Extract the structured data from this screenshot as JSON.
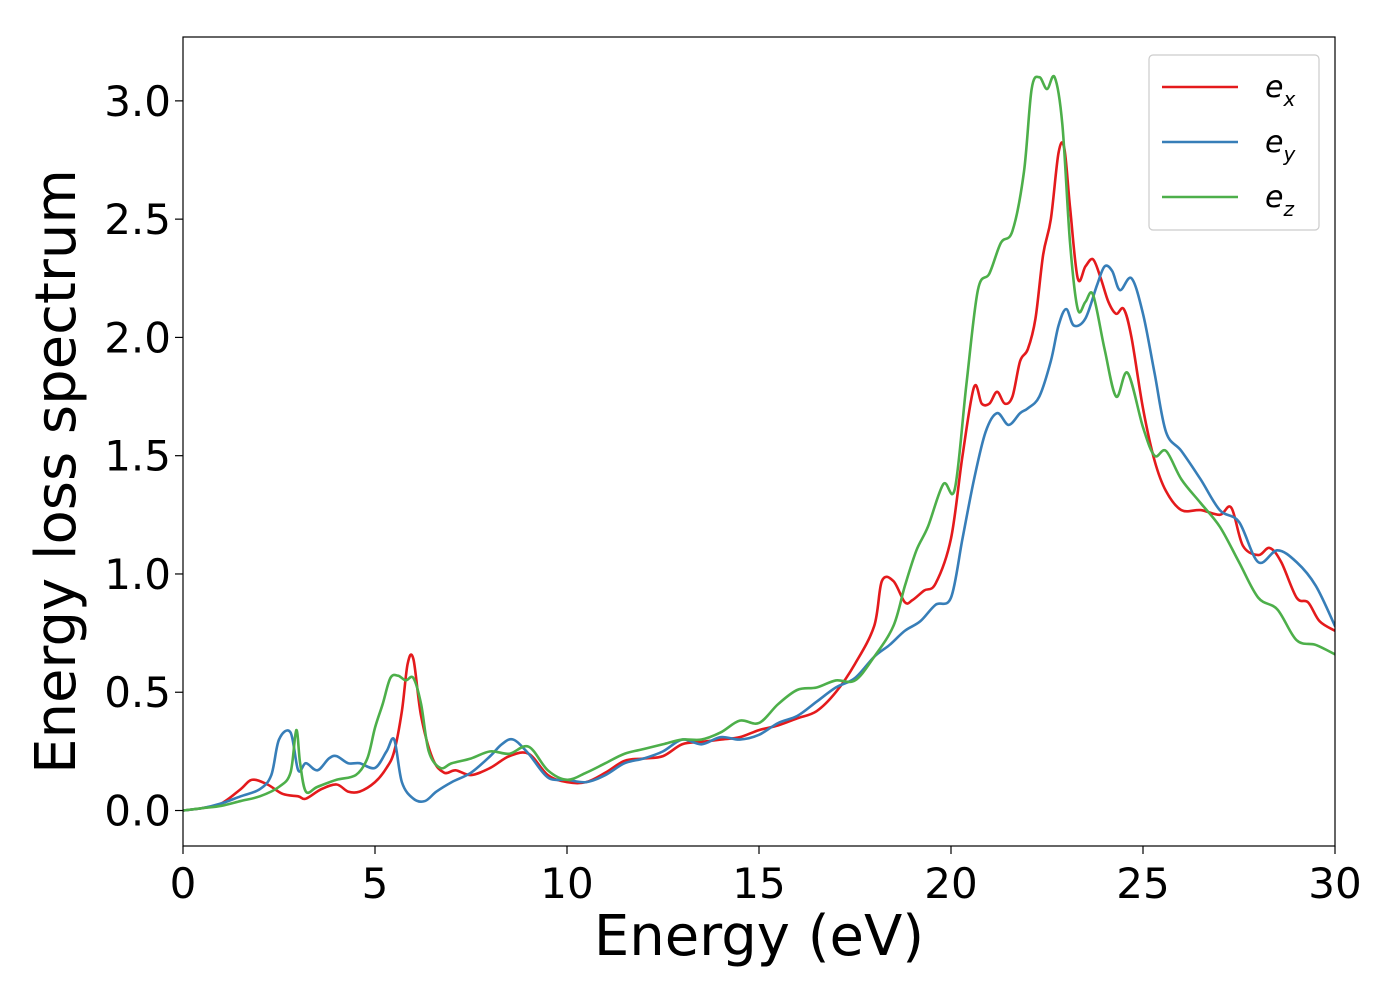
{
  "chart_data": {
    "type": "line",
    "xlabel": "Energy (eV)",
    "ylabel": "Energy loss spectrum",
    "xlim": [
      0,
      30
    ],
    "ylim": [
      -0.15,
      3.27
    ],
    "xticks": [
      0,
      5,
      10,
      15,
      20,
      25,
      30
    ],
    "xtick_labels": [
      "0",
      "5",
      "10",
      "15",
      "20",
      "25",
      "30"
    ],
    "yticks": [
      0.0,
      0.5,
      1.0,
      1.5,
      2.0,
      2.5,
      3.0
    ],
    "ytick_labels": [
      "0.0",
      "0.5",
      "1.0",
      "1.5",
      "2.0",
      "2.5",
      "3.0"
    ],
    "grid": false,
    "legend_position": "top-right",
    "series": [
      {
        "name": "e_x",
        "legend_main": "e",
        "legend_sub": "x",
        "color": "#e41a1c",
        "x": [
          0,
          0.5,
          1.0,
          1.5,
          1.8,
          2.2,
          2.6,
          3.0,
          3.2,
          3.6,
          4.0,
          4.3,
          4.6,
          5.0,
          5.3,
          5.5,
          5.7,
          5.85,
          6.0,
          6.2,
          6.5,
          6.8,
          7.1,
          7.5,
          8.0,
          8.5,
          9.0,
          9.5,
          10.0,
          10.5,
          11.0,
          11.5,
          12.0,
          12.5,
          13.0,
          13.5,
          14.0,
          14.5,
          15.0,
          15.5,
          16.0,
          16.5,
          17.0,
          17.5,
          18.0,
          18.2,
          18.5,
          18.8,
          19.0,
          19.3,
          19.6,
          20.0,
          20.3,
          20.6,
          20.8,
          21.0,
          21.2,
          21.4,
          21.6,
          21.8,
          22.0,
          22.2,
          22.4,
          22.6,
          22.8,
          22.95,
          23.1,
          23.3,
          23.5,
          23.7,
          23.9,
          24.1,
          24.3,
          24.5,
          24.7,
          25.0,
          25.3,
          25.6,
          26.0,
          26.5,
          27.0,
          27.3,
          27.6,
          28.0,
          28.3,
          28.6,
          29.0,
          29.3,
          29.6,
          30.0
        ],
        "y": [
          0.0,
          0.01,
          0.03,
          0.09,
          0.13,
          0.11,
          0.07,
          0.06,
          0.05,
          0.09,
          0.11,
          0.08,
          0.08,
          0.12,
          0.18,
          0.25,
          0.42,
          0.62,
          0.64,
          0.4,
          0.22,
          0.16,
          0.17,
          0.15,
          0.18,
          0.23,
          0.24,
          0.15,
          0.12,
          0.12,
          0.16,
          0.21,
          0.22,
          0.23,
          0.28,
          0.29,
          0.3,
          0.31,
          0.34,
          0.36,
          0.39,
          0.42,
          0.5,
          0.62,
          0.78,
          0.97,
          0.97,
          0.88,
          0.89,
          0.93,
          0.96,
          1.15,
          1.5,
          1.79,
          1.72,
          1.72,
          1.77,
          1.72,
          1.75,
          1.9,
          1.95,
          2.08,
          2.35,
          2.5,
          2.78,
          2.8,
          2.55,
          2.25,
          2.3,
          2.33,
          2.25,
          2.15,
          2.1,
          2.12,
          2.0,
          1.7,
          1.48,
          1.35,
          1.27,
          1.27,
          1.25,
          1.28,
          1.12,
          1.08,
          1.11,
          1.05,
          0.9,
          0.88,
          0.8,
          0.76
        ]
      },
      {
        "name": "e_y",
        "legend_main": "e",
        "legend_sub": "y",
        "color": "#377eb8",
        "x": [
          0,
          0.5,
          1.0,
          1.5,
          2.0,
          2.3,
          2.5,
          2.8,
          3.0,
          3.2,
          3.5,
          3.8,
          4.0,
          4.3,
          4.6,
          5.0,
          5.3,
          5.5,
          5.7,
          6.0,
          6.3,
          6.6,
          7.0,
          7.5,
          8.0,
          8.3,
          8.6,
          9.0,
          9.5,
          10.0,
          10.5,
          11.0,
          11.5,
          12.0,
          12.5,
          13.0,
          13.5,
          14.0,
          14.5,
          15.0,
          15.5,
          16.0,
          16.5,
          17.0,
          17.5,
          18.0,
          18.4,
          18.8,
          19.2,
          19.6,
          20.0,
          20.3,
          20.6,
          20.9,
          21.2,
          21.5,
          21.8,
          22.0,
          22.3,
          22.6,
          22.8,
          23.0,
          23.2,
          23.5,
          23.8,
          24.0,
          24.2,
          24.4,
          24.7,
          25.0,
          25.3,
          25.6,
          26.0,
          26.5,
          27.0,
          27.5,
          28.0,
          28.5,
          29.0,
          29.5,
          30.0
        ],
        "y": [
          0.0,
          0.01,
          0.03,
          0.06,
          0.09,
          0.15,
          0.3,
          0.33,
          0.17,
          0.2,
          0.17,
          0.22,
          0.23,
          0.2,
          0.2,
          0.18,
          0.25,
          0.3,
          0.12,
          0.05,
          0.04,
          0.08,
          0.12,
          0.16,
          0.23,
          0.28,
          0.3,
          0.24,
          0.14,
          0.13,
          0.12,
          0.15,
          0.2,
          0.22,
          0.25,
          0.3,
          0.28,
          0.31,
          0.3,
          0.32,
          0.37,
          0.4,
          0.46,
          0.52,
          0.56,
          0.65,
          0.7,
          0.76,
          0.8,
          0.87,
          0.9,
          1.15,
          1.4,
          1.6,
          1.68,
          1.63,
          1.68,
          1.7,
          1.75,
          1.9,
          2.05,
          2.12,
          2.05,
          2.08,
          2.22,
          2.3,
          2.28,
          2.2,
          2.25,
          2.1,
          1.85,
          1.6,
          1.52,
          1.4,
          1.27,
          1.22,
          1.05,
          1.1,
          1.05,
          0.95,
          0.78
        ]
      },
      {
        "name": "e_z",
        "legend_main": "e",
        "legend_sub": "z",
        "color": "#4daf4a",
        "x": [
          0,
          0.5,
          1.0,
          1.5,
          2.0,
          2.5,
          2.8,
          2.95,
          3.05,
          3.2,
          3.5,
          4.0,
          4.5,
          4.8,
          5.0,
          5.2,
          5.4,
          5.6,
          5.8,
          6.0,
          6.2,
          6.4,
          6.7,
          7.0,
          7.5,
          8.0,
          8.5,
          9.0,
          9.5,
          10.0,
          10.5,
          11.0,
          11.5,
          12.0,
          12.5,
          13.0,
          13.5,
          14.0,
          14.5,
          15.0,
          15.5,
          16.0,
          16.5,
          17.0,
          17.5,
          18.0,
          18.5,
          18.8,
          19.1,
          19.4,
          19.8,
          20.1,
          20.4,
          20.7,
          21.0,
          21.3,
          21.6,
          21.9,
          22.1,
          22.3,
          22.5,
          22.7,
          22.9,
          23.1,
          23.3,
          23.5,
          23.7,
          24.0,
          24.3,
          24.6,
          25.0,
          25.3,
          25.6,
          26.0,
          26.5,
          27.0,
          27.5,
          28.0,
          28.5,
          29.0,
          29.5,
          30.0
        ],
        "y": [
          0.0,
          0.01,
          0.02,
          0.04,
          0.06,
          0.1,
          0.16,
          0.34,
          0.2,
          0.08,
          0.1,
          0.13,
          0.15,
          0.22,
          0.35,
          0.45,
          0.56,
          0.57,
          0.55,
          0.56,
          0.45,
          0.25,
          0.18,
          0.2,
          0.22,
          0.25,
          0.24,
          0.27,
          0.17,
          0.13,
          0.16,
          0.2,
          0.24,
          0.26,
          0.28,
          0.3,
          0.3,
          0.33,
          0.38,
          0.37,
          0.45,
          0.51,
          0.52,
          0.55,
          0.55,
          0.65,
          0.78,
          0.95,
          1.1,
          1.2,
          1.38,
          1.36,
          1.8,
          2.2,
          2.27,
          2.4,
          2.45,
          2.7,
          3.05,
          3.1,
          3.05,
          3.1,
          2.9,
          2.4,
          2.12,
          2.15,
          2.18,
          1.95,
          1.75,
          1.85,
          1.62,
          1.5,
          1.52,
          1.4,
          1.3,
          1.2,
          1.05,
          0.9,
          0.85,
          0.72,
          0.7,
          0.66
        ]
      }
    ]
  }
}
